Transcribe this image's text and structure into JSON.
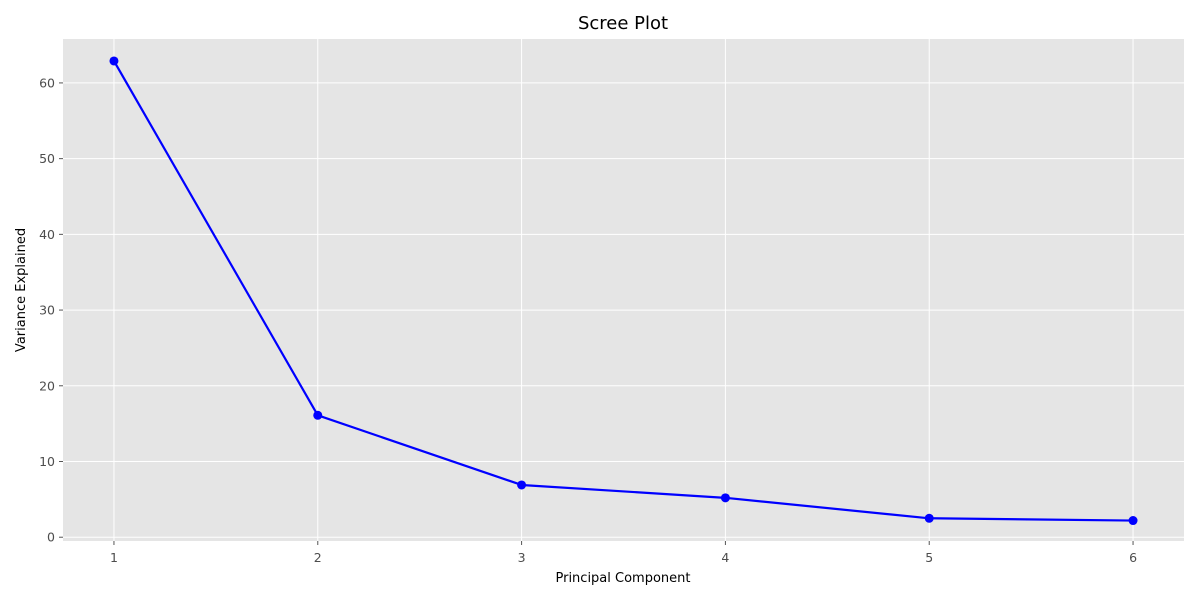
{
  "chart_data": {
    "type": "line",
    "title": "Scree Plot",
    "xlabel": "Principal Component",
    "ylabel": "Variance Explained",
    "x": [
      1,
      2,
      3,
      4,
      5,
      6
    ],
    "series": [
      {
        "values": [
          62.9,
          16.1,
          6.9,
          5.2,
          2.5,
          2.2
        ],
        "color": "#0000ff",
        "marker": "circle"
      }
    ],
    "xlim": [
      0.75,
      6.25
    ],
    "ylim": [
      -0.5,
      65.8
    ],
    "xticks": [
      1,
      2,
      3,
      4,
      5,
      6
    ],
    "yticks": [
      0,
      10,
      20,
      30,
      40,
      50,
      60
    ],
    "grid": true,
    "background_color": "#e5e5e5",
    "grid_color": "#ffffff"
  }
}
